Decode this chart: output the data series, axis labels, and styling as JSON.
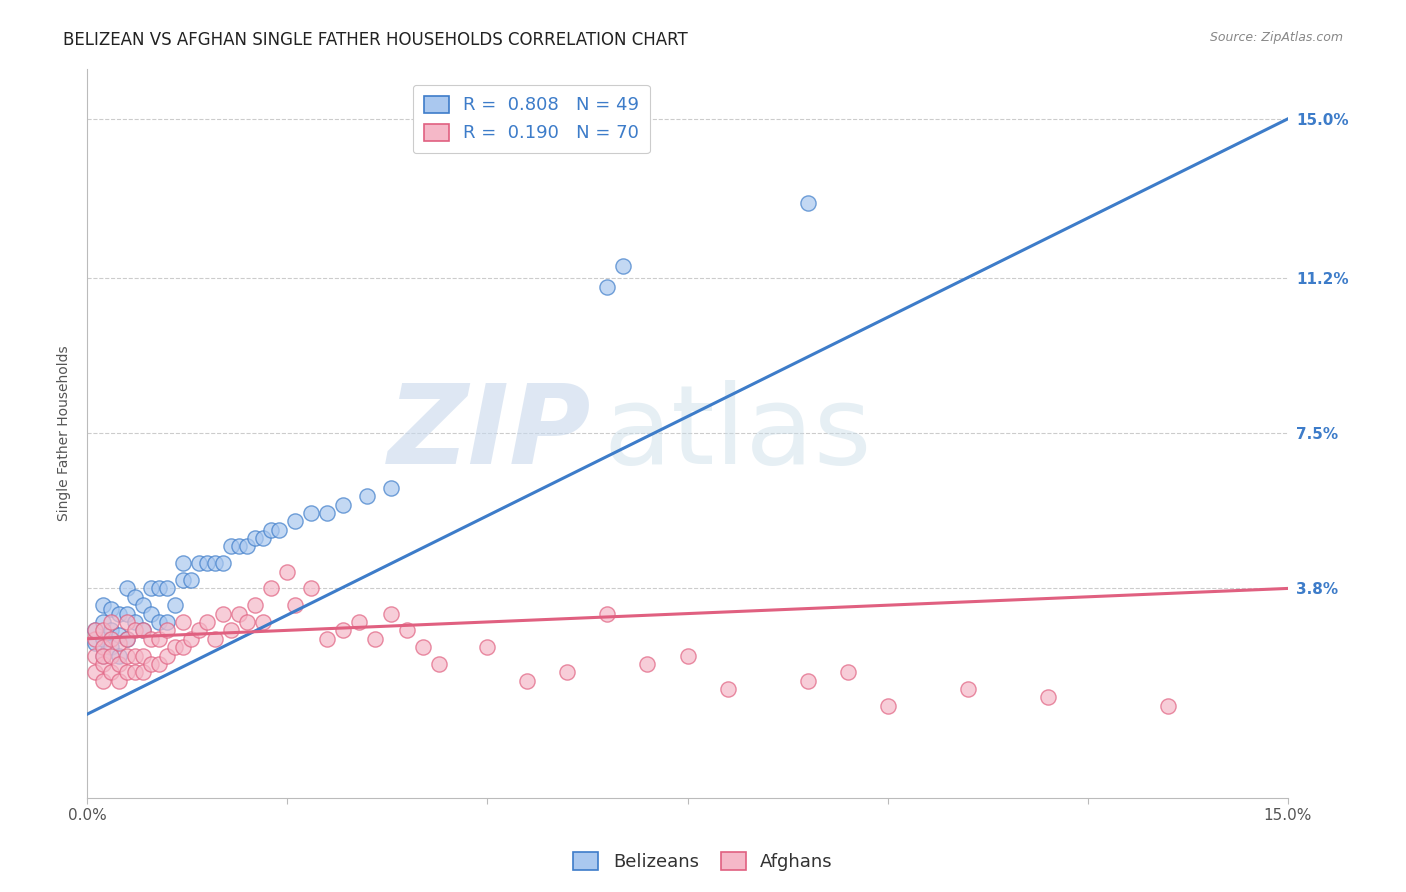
{
  "title": "BELIZEAN VS AFGHAN SINGLE FATHER HOUSEHOLDS CORRELATION CHART",
  "source": "Source: ZipAtlas.com",
  "ylabel": "Single Father Households",
  "ytick_labels": [
    "3.8%",
    "7.5%",
    "11.2%",
    "15.0%"
  ],
  "ytick_values": [
    0.038,
    0.075,
    0.112,
    0.15
  ],
  "xmin": 0.0,
  "xmax": 0.15,
  "ymin": -0.012,
  "ymax": 0.162,
  "belizean_color": "#aac8ef",
  "afghan_color": "#f5b8c8",
  "trendline_blue": "#3d7cc9",
  "trendline_pink": "#e06080",
  "R_belizean": 0.808,
  "N_belizean": 49,
  "R_afghan": 0.19,
  "N_afghan": 70,
  "bel_tline_x0": 0.0,
  "bel_tline_y0": 0.008,
  "bel_tline_x1": 0.15,
  "bel_tline_y1": 0.15,
  "afg_tline_x0": 0.0,
  "afg_tline_y0": 0.026,
  "afg_tline_x1": 0.15,
  "afg_tline_y1": 0.038,
  "belizean_x": [
    0.001,
    0.001,
    0.002,
    0.002,
    0.002,
    0.002,
    0.003,
    0.003,
    0.003,
    0.004,
    0.004,
    0.004,
    0.005,
    0.005,
    0.005,
    0.006,
    0.006,
    0.007,
    0.007,
    0.008,
    0.008,
    0.009,
    0.009,
    0.01,
    0.01,
    0.011,
    0.012,
    0.012,
    0.013,
    0.014,
    0.015,
    0.016,
    0.017,
    0.018,
    0.019,
    0.02,
    0.021,
    0.022,
    0.023,
    0.024,
    0.026,
    0.028,
    0.03,
    0.032,
    0.035,
    0.038,
    0.065,
    0.067,
    0.09
  ],
  "belizean_y": [
    0.025,
    0.028,
    0.022,
    0.026,
    0.03,
    0.034,
    0.024,
    0.028,
    0.033,
    0.022,
    0.027,
    0.032,
    0.026,
    0.032,
    0.038,
    0.03,
    0.036,
    0.028,
    0.034,
    0.032,
    0.038,
    0.03,
    0.038,
    0.03,
    0.038,
    0.034,
    0.04,
    0.044,
    0.04,
    0.044,
    0.044,
    0.044,
    0.044,
    0.048,
    0.048,
    0.048,
    0.05,
    0.05,
    0.052,
    0.052,
    0.054,
    0.056,
    0.056,
    0.058,
    0.06,
    0.062,
    0.11,
    0.115,
    0.13
  ],
  "afghan_x": [
    0.001,
    0.001,
    0.001,
    0.001,
    0.002,
    0.002,
    0.002,
    0.002,
    0.002,
    0.003,
    0.003,
    0.003,
    0.003,
    0.004,
    0.004,
    0.004,
    0.005,
    0.005,
    0.005,
    0.005,
    0.006,
    0.006,
    0.006,
    0.007,
    0.007,
    0.007,
    0.008,
    0.008,
    0.009,
    0.009,
    0.01,
    0.01,
    0.011,
    0.012,
    0.012,
    0.013,
    0.014,
    0.015,
    0.016,
    0.017,
    0.018,
    0.019,
    0.02,
    0.021,
    0.022,
    0.023,
    0.025,
    0.026,
    0.028,
    0.03,
    0.032,
    0.034,
    0.036,
    0.038,
    0.04,
    0.042,
    0.044,
    0.05,
    0.055,
    0.06,
    0.065,
    0.07,
    0.075,
    0.08,
    0.09,
    0.095,
    0.1,
    0.11,
    0.12,
    0.135
  ],
  "afghan_y": [
    0.018,
    0.022,
    0.026,
    0.028,
    0.016,
    0.02,
    0.024,
    0.028,
    0.022,
    0.018,
    0.022,
    0.026,
    0.03,
    0.016,
    0.02,
    0.025,
    0.018,
    0.022,
    0.026,
    0.03,
    0.018,
    0.022,
    0.028,
    0.018,
    0.022,
    0.028,
    0.02,
    0.026,
    0.02,
    0.026,
    0.022,
    0.028,
    0.024,
    0.024,
    0.03,
    0.026,
    0.028,
    0.03,
    0.026,
    0.032,
    0.028,
    0.032,
    0.03,
    0.034,
    0.03,
    0.038,
    0.042,
    0.034,
    0.038,
    0.026,
    0.028,
    0.03,
    0.026,
    0.032,
    0.028,
    0.024,
    0.02,
    0.024,
    0.016,
    0.018,
    0.032,
    0.02,
    0.022,
    0.014,
    0.016,
    0.018,
    0.01,
    0.014,
    0.012,
    0.01
  ],
  "background_color": "#ffffff",
  "grid_color": "#cccccc",
  "title_fontsize": 12,
  "axis_fontsize": 10,
  "legend_fontsize": 13,
  "tick_fontsize": 11
}
